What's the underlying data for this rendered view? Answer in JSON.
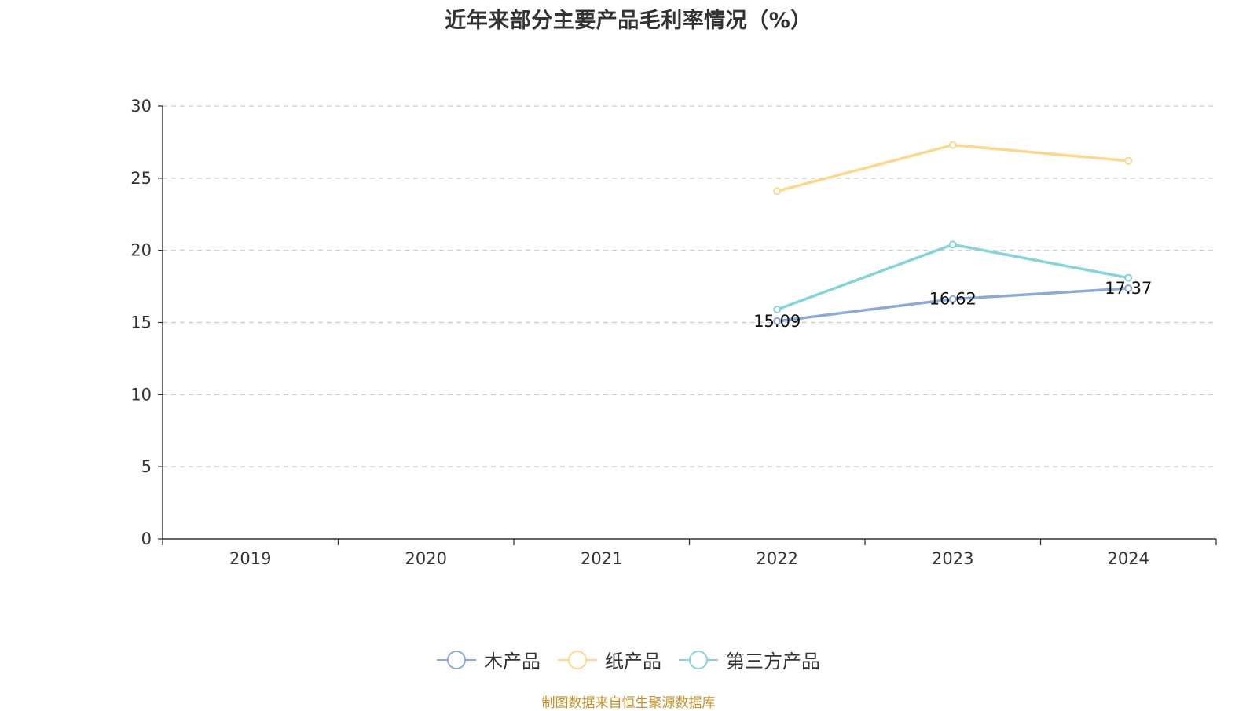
{
  "chart_data": {
    "type": "line",
    "title": "近年来部分主要产品毛利率情况（%）",
    "categories": [
      "2019",
      "2020",
      "2021",
      "2022",
      "2023",
      "2024"
    ],
    "xlabel": "",
    "ylabel": "",
    "ylim": [
      0,
      30
    ],
    "yticks": [
      0,
      5,
      10,
      15,
      20,
      25,
      30
    ],
    "grid": true,
    "legend_position": "bottom-center",
    "series": [
      {
        "name": "木产品",
        "color": "#8ea9d8",
        "values": [
          null,
          null,
          null,
          15.09,
          16.62,
          17.37
        ],
        "labels": [
          null,
          null,
          null,
          "15.09",
          "16.62",
          "17.37"
        ]
      },
      {
        "name": "纸产品",
        "color": "#fbd88e",
        "values": [
          null,
          null,
          null,
          24.1,
          27.3,
          26.2
        ],
        "labels": [
          null,
          null,
          null,
          null,
          null,
          null
        ]
      },
      {
        "name": "第三方产品",
        "color": "#86d4d6",
        "values": [
          null,
          null,
          null,
          15.9,
          20.4,
          18.1
        ],
        "labels": [
          null,
          null,
          null,
          null,
          null,
          null
        ]
      }
    ]
  },
  "source_text": "制图数据来自恒生聚源数据库"
}
